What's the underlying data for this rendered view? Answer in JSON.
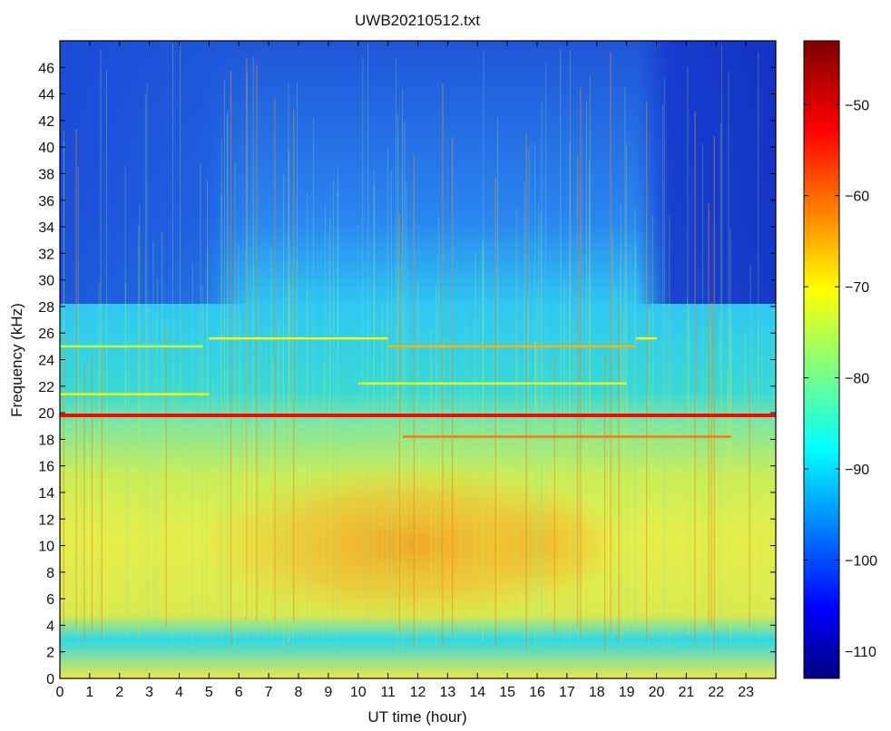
{
  "chart_data": {
    "type": "heatmap",
    "title": "UWB20210512.txt",
    "xlabel": "UT time (hour)",
    "ylabel": "Frequency (kHz)",
    "xlim": [
      0,
      24
    ],
    "ylim": [
      0,
      48
    ],
    "x_ticks": [
      "0",
      "1",
      "2",
      "3",
      "4",
      "5",
      "6",
      "7",
      "8",
      "9",
      "10",
      "11",
      "12",
      "13",
      "14",
      "15",
      "16",
      "17",
      "18",
      "19",
      "20",
      "21",
      "22",
      "23"
    ],
    "y_ticks": [
      "0",
      "2",
      "4",
      "6",
      "8",
      "10",
      "12",
      "14",
      "16",
      "18",
      "20",
      "22",
      "24",
      "26",
      "28",
      "30",
      "32",
      "34",
      "36",
      "38",
      "40",
      "42",
      "44",
      "46"
    ],
    "colorbar": {
      "colormap": "jet",
      "range": [
        -113,
        -43
      ],
      "ticks": [
        "−50",
        "−60",
        "−70",
        "−80",
        "−90",
        "−100",
        "−110"
      ]
    },
    "narrowband_lines": [
      {
        "freq_khz": 19.8,
        "t_start": 0,
        "t_end": 24,
        "level_db": -52
      },
      {
        "freq_khz": 18.2,
        "t_start": 11.5,
        "t_end": 22.5,
        "level_db": -60
      },
      {
        "freq_khz": 21.4,
        "t_start": 0,
        "t_end": 5,
        "level_db": -70
      },
      {
        "freq_khz": 25.0,
        "t_start": 0,
        "t_end": 4.8,
        "level_db": -73
      },
      {
        "freq_khz": 25.6,
        "t_start": 5,
        "t_end": 11,
        "level_db": -70
      },
      {
        "freq_khz": 25.0,
        "t_start": 11,
        "t_end": 19.3,
        "level_db": -64
      },
      {
        "freq_khz": 25.6,
        "t_start": 19.3,
        "t_end": 20,
        "level_db": -70
      },
      {
        "freq_khz": 22.2,
        "t_start": 10,
        "t_end": 19,
        "level_db": -72
      }
    ],
    "broadband_regions": [
      {
        "t_start": 5.8,
        "t_end": 11.2,
        "f_low": 4,
        "f_high": 14,
        "level_db": -64
      },
      {
        "t_start": 0,
        "t_end": 24,
        "f_low": 0,
        "f_high": 2,
        "level_db": -73
      }
    ]
  }
}
